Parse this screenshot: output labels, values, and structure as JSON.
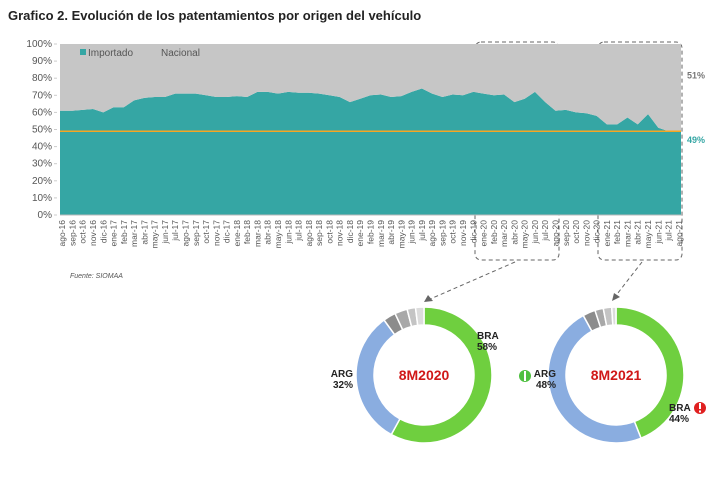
{
  "chart_data": [
    {
      "type": "area",
      "title": "Grafico 2. Evolución de los patentamientos por origen del vehículo",
      "source": "Fuente: SIOMAA",
      "stacked": true,
      "legend": "top-left",
      "categories": [
        "ago-16",
        "sep-16",
        "oct-16",
        "nov-16",
        "dic-16",
        "ene-17",
        "feb-17",
        "mar-17",
        "abr-17",
        "may-17",
        "jun-17",
        "jul-17",
        "ago-17",
        "sep-17",
        "oct-17",
        "nov-17",
        "dic-17",
        "ene-18",
        "feb-18",
        "mar-18",
        "abr-18",
        "may-18",
        "jun-18",
        "jul-18",
        "ago-18",
        "sep-18",
        "oct-18",
        "nov-18",
        "dic-18",
        "ene-19",
        "feb-19",
        "mar-19",
        "abr-19",
        "may-19",
        "jun-19",
        "jul-19",
        "ago-19",
        "sep-19",
        "oct-19",
        "nov-19",
        "dic-19",
        "ene-20",
        "feb-20",
        "mar-20",
        "abr-20",
        "may-20",
        "jun-20",
        "jul-20",
        "ago-20",
        "sep-20",
        "oct-20",
        "nov-20",
        "dic-20",
        "ene-21",
        "feb-21",
        "mar-21",
        "abr-21",
        "may-21",
        "jun-21",
        "jul-21",
        "ago-21"
      ],
      "series": [
        {
          "name": "Importado",
          "color": "#35a6a4",
          "end_label": "49%",
          "values": [
            61,
            61,
            61.5,
            62,
            60,
            63,
            63,
            67,
            68.5,
            69,
            69,
            71,
            71,
            71,
            70,
            69,
            69,
            69.5,
            69,
            72,
            72,
            71,
            72,
            71.5,
            71.5,
            71,
            70,
            69,
            66,
            68,
            70,
            70.5,
            69,
            69.5,
            72,
            74,
            71,
            69,
            70.5,
            70,
            72,
            71,
            70,
            70.5,
            66,
            68,
            72,
            66,
            61,
            61.5,
            60,
            59.5,
            58,
            53,
            53,
            57,
            53,
            59,
            51,
            49,
            49
          ]
        },
        {
          "name": "Nacional",
          "color": "#c6c6c6",
          "end_label": "51%",
          "values": [
            39,
            39,
            38.5,
            38,
            40,
            37,
            37,
            33,
            31.5,
            31,
            31,
            29,
            29,
            29,
            30,
            31,
            31,
            30.5,
            31,
            28,
            28,
            29,
            28,
            28.5,
            28.5,
            29,
            30,
            31,
            34,
            32,
            30,
            29.5,
            31,
            30.5,
            28,
            26,
            29,
            31,
            29.5,
            30,
            28,
            29,
            30,
            29.5,
            34,
            32,
            28,
            34,
            39,
            38.5,
            40,
            40.5,
            42,
            47,
            47,
            43,
            47,
            41,
            49,
            51,
            51
          ]
        }
      ],
      "reference_line": {
        "value": 49,
        "color": "#f5a623"
      },
      "ylim": [
        0,
        100
      ],
      "yticks": [
        {
          "value": 0,
          "label": "0%"
        },
        {
          "value": 10,
          "label": "10%"
        },
        {
          "value": 20,
          "label": "20%"
        },
        {
          "value": 30,
          "label": "30%"
        },
        {
          "value": 40,
          "label": "40%"
        },
        {
          "value": 50,
          "label": "50%"
        },
        {
          "value": 60,
          "label": "60%"
        },
        {
          "value": 70,
          "label": "70%"
        },
        {
          "value": 80,
          "label": "80%"
        },
        {
          "value": 90,
          "label": "90%"
        },
        {
          "value": 100,
          "label": "100%"
        }
      ]
    },
    {
      "type": "donut",
      "label": "8M2020",
      "categories": [
        "BRA",
        "ARG",
        null,
        null,
        null,
        null
      ],
      "values": [
        58,
        32,
        3,
        3,
        2,
        2
      ],
      "value_labels": [
        "58%",
        "32%",
        null,
        null,
        null,
        null
      ],
      "colors": [
        "#6fcf3f",
        "#8aade0",
        "#8c8c8c",
        "#a8a8a8",
        "#c4c4c4",
        "#dcdcdc"
      ]
    },
    {
      "type": "donut",
      "label": "8M2021",
      "categories": [
        "BRA",
        "ARG",
        null,
        null,
        null,
        null
      ],
      "values": [
        44,
        48,
        3,
        2,
        2,
        1
      ],
      "value_labels": [
        "44%",
        "48%",
        null,
        null,
        null,
        null
      ],
      "colors": [
        "#6fcf3f",
        "#8aade0",
        "#8c8c8c",
        "#a8a8a8",
        "#c4c4c4",
        "#dcdcdc"
      ]
    }
  ]
}
